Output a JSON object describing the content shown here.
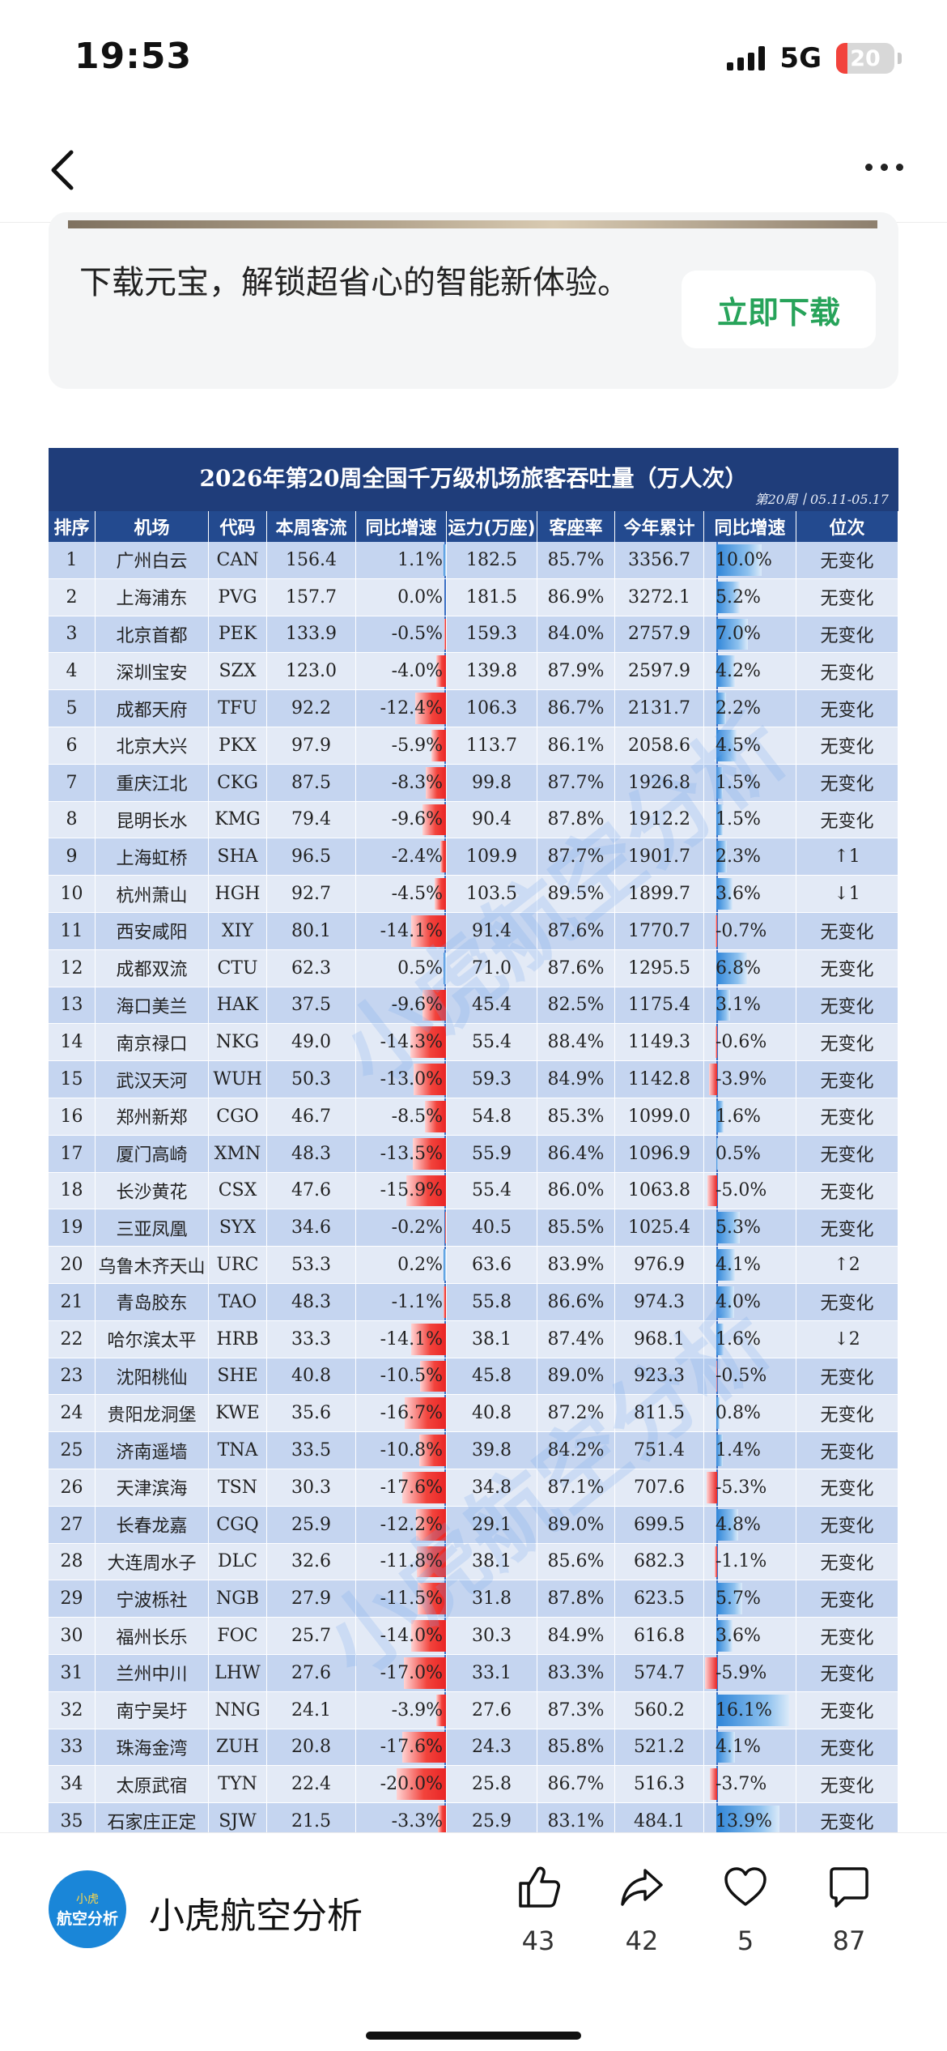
{
  "status_bar": {
    "time": "19:53",
    "network": "5G",
    "battery": "20",
    "battery_level": 0.2
  },
  "ad": {
    "text": "下载元宝，解锁超省心的智能新体验。",
    "button": "立即下载"
  },
  "table": {
    "title": "2026年第20周全国千万级机场旅客吞吐量（万人次）",
    "subtitle": "第20周丨05.11-05.17",
    "headers": [
      "排序",
      "机场",
      "代码",
      "本周客流",
      "同比增速",
      "运力(万座)",
      "客座率",
      "今年累计",
      "同比增速",
      "位次"
    ],
    "rows": [
      [
        "1",
        "广州白云",
        "CAN",
        "156.4",
        "1.1%",
        "182.5",
        "85.7%",
        "3356.7",
        "10.0%",
        "无变化"
      ],
      [
        "2",
        "上海浦东",
        "PVG",
        "157.7",
        "0.0%",
        "181.5",
        "86.9%",
        "3272.1",
        "5.2%",
        "无变化"
      ],
      [
        "3",
        "北京首都",
        "PEK",
        "133.9",
        "-0.5%",
        "159.3",
        "84.0%",
        "2757.9",
        "7.0%",
        "无变化"
      ],
      [
        "4",
        "深圳宝安",
        "SZX",
        "123.0",
        "-4.0%",
        "139.8",
        "87.9%",
        "2597.9",
        "4.2%",
        "无变化"
      ],
      [
        "5",
        "成都天府",
        "TFU",
        "92.2",
        "-12.4%",
        "106.3",
        "86.7%",
        "2131.7",
        "2.2%",
        "无变化"
      ],
      [
        "6",
        "北京大兴",
        "PKX",
        "97.9",
        "-5.9%",
        "113.7",
        "86.1%",
        "2058.6",
        "4.5%",
        "无变化"
      ],
      [
        "7",
        "重庆江北",
        "CKG",
        "87.5",
        "-8.3%",
        "99.8",
        "87.7%",
        "1926.8",
        "1.5%",
        "无变化"
      ],
      [
        "8",
        "昆明长水",
        "KMG",
        "79.4",
        "-9.6%",
        "90.4",
        "87.8%",
        "1912.2",
        "1.5%",
        "无变化"
      ],
      [
        "9",
        "上海虹桥",
        "SHA",
        "96.5",
        "-2.4%",
        "109.9",
        "87.7%",
        "1901.7",
        "2.3%",
        "↑1"
      ],
      [
        "10",
        "杭州萧山",
        "HGH",
        "92.7",
        "-4.5%",
        "103.5",
        "89.5%",
        "1899.7",
        "3.6%",
        "↓1"
      ],
      [
        "11",
        "西安咸阳",
        "XIY",
        "80.1",
        "-14.1%",
        "91.4",
        "87.6%",
        "1770.7",
        "-0.7%",
        "无变化"
      ],
      [
        "12",
        "成都双流",
        "CTU",
        "62.3",
        "0.5%",
        "71.0",
        "87.6%",
        "1295.5",
        "6.8%",
        "无变化"
      ],
      [
        "13",
        "海口美兰",
        "HAK",
        "37.5",
        "-9.6%",
        "45.4",
        "82.5%",
        "1175.4",
        "3.1%",
        "无变化"
      ],
      [
        "14",
        "南京禄口",
        "NKG",
        "49.0",
        "-14.3%",
        "55.4",
        "88.4%",
        "1149.3",
        "-0.6%",
        "无变化"
      ],
      [
        "15",
        "武汉天河",
        "WUH",
        "50.3",
        "-13.0%",
        "59.3",
        "84.9%",
        "1142.8",
        "-3.9%",
        "无变化"
      ],
      [
        "16",
        "郑州新郑",
        "CGO",
        "46.7",
        "-8.5%",
        "54.8",
        "85.3%",
        "1099.0",
        "1.6%",
        "无变化"
      ],
      [
        "17",
        "厦门高崎",
        "XMN",
        "48.3",
        "-13.5%",
        "55.9",
        "86.4%",
        "1096.9",
        "0.5%",
        "无变化"
      ],
      [
        "18",
        "长沙黄花",
        "CSX",
        "47.6",
        "-15.9%",
        "55.4",
        "86.0%",
        "1063.8",
        "-5.0%",
        "无变化"
      ],
      [
        "19",
        "三亚凤凰",
        "SYX",
        "34.6",
        "-0.2%",
        "40.5",
        "85.5%",
        "1025.4",
        "5.3%",
        "无变化"
      ],
      [
        "20",
        "乌鲁木齐天山",
        "URC",
        "53.3",
        "0.2%",
        "63.6",
        "83.9%",
        "976.9",
        "4.1%",
        "↑2"
      ],
      [
        "21",
        "青岛胶东",
        "TAO",
        "48.3",
        "-1.1%",
        "55.8",
        "86.6%",
        "974.3",
        "4.0%",
        "无变化"
      ],
      [
        "22",
        "哈尔滨太平",
        "HRB",
        "33.3",
        "-14.1%",
        "38.1",
        "87.4%",
        "968.1",
        "1.6%",
        "↓2"
      ],
      [
        "23",
        "沈阳桃仙",
        "SHE",
        "40.8",
        "-10.5%",
        "45.8",
        "89.0%",
        "923.3",
        "-0.5%",
        "无变化"
      ],
      [
        "24",
        "贵阳龙洞堡",
        "KWE",
        "35.6",
        "-16.7%",
        "40.8",
        "87.2%",
        "811.5",
        "0.8%",
        "无变化"
      ],
      [
        "25",
        "济南遥墙",
        "TNA",
        "33.5",
        "-10.8%",
        "39.8",
        "84.2%",
        "751.4",
        "1.4%",
        "无变化"
      ],
      [
        "26",
        "天津滨海",
        "TSN",
        "30.3",
        "-17.6%",
        "34.8",
        "87.1%",
        "707.6",
        "-5.3%",
        "无变化"
      ],
      [
        "27",
        "长春龙嘉",
        "CGQ",
        "25.9",
        "-12.2%",
        "29.1",
        "89.0%",
        "699.5",
        "4.8%",
        "无变化"
      ],
      [
        "28",
        "大连周水子",
        "DLC",
        "32.6",
        "-11.8%",
        "38.1",
        "85.6%",
        "682.3",
        "-1.1%",
        "无变化"
      ],
      [
        "29",
        "宁波栎社",
        "NGB",
        "27.9",
        "-11.5%",
        "31.8",
        "87.8%",
        "623.5",
        "5.7%",
        "无变化"
      ],
      [
        "30",
        "福州长乐",
        "FOC",
        "25.7",
        "-14.0%",
        "30.3",
        "84.9%",
        "616.8",
        "3.6%",
        "无变化"
      ],
      [
        "31",
        "兰州中川",
        "LHW",
        "27.6",
        "-17.0%",
        "33.1",
        "83.3%",
        "574.7",
        "-5.9%",
        "无变化"
      ],
      [
        "32",
        "南宁吴圩",
        "NNG",
        "24.1",
        "-3.9%",
        "27.6",
        "87.3%",
        "560.2",
        "16.1%",
        "无变化"
      ],
      [
        "33",
        "珠海金湾",
        "ZUH",
        "20.8",
        "-17.6%",
        "24.3",
        "85.8%",
        "521.2",
        "4.1%",
        "无变化"
      ],
      [
        "34",
        "太原武宿",
        "TYN",
        "22.4",
        "-20.0%",
        "25.8",
        "86.7%",
        "516.3",
        "-3.7%",
        "无变化"
      ],
      [
        "35",
        "石家庄正定",
        "SJW",
        "21.5",
        "-3.3%",
        "25.9",
        "83.1%",
        "484.1",
        "13.9%",
        "无变化"
      ]
    ]
  },
  "author": {
    "avatar_top": "小虎",
    "avatar_main": "航空分析",
    "name": "小虎航空分析"
  },
  "actions": {
    "like": "43",
    "share": "42",
    "favorite": "5",
    "comment": "87"
  },
  "icons": {
    "back": "chevron-left-icon",
    "more": "more-dots-icon",
    "like": "thumb-up-icon",
    "share": "share-arrow-icon",
    "favorite": "heart-icon",
    "comment": "comment-bubble-icon"
  }
}
